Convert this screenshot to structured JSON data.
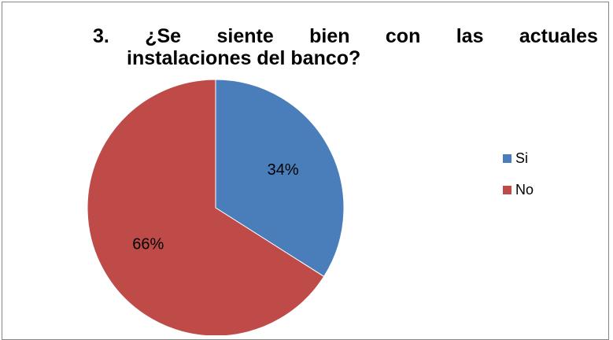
{
  "chart_data": {
    "type": "pie",
    "title_prefix": "3.",
    "title_words": [
      "¿Se",
      "siente",
      "bien",
      "con",
      "las",
      "actuales"
    ],
    "title_line2": "instalaciones del banco?",
    "categories": [
      "Si",
      "No"
    ],
    "values": [
      34,
      66
    ],
    "labels": [
      "34%",
      "66%"
    ],
    "colors": [
      "#4a7ebb",
      "#be4b48"
    ],
    "legend_position": "right"
  }
}
